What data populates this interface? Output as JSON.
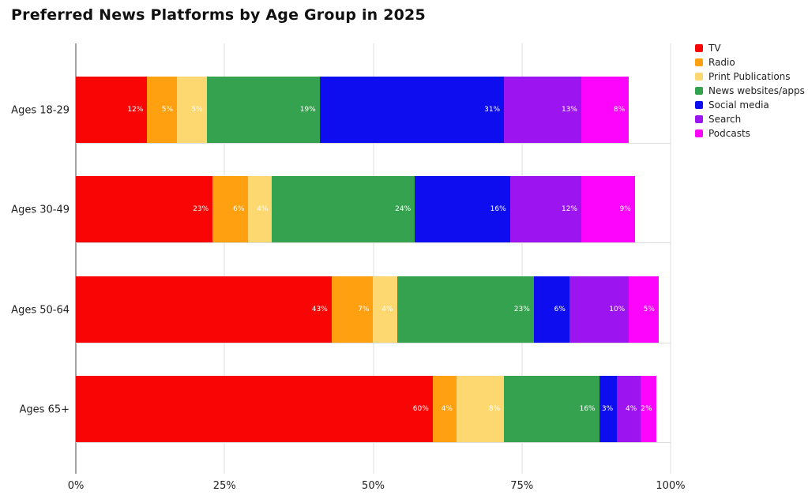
{
  "title": "Preferred News Platforms by Age Group in 2025",
  "chart_data": {
    "type": "bar",
    "orientation": "horizontal",
    "stacked": true,
    "title": "Preferred News Platforms by Age Group in 2025",
    "categories": [
      "Ages 18-29",
      "Ages 30-49",
      "Ages 50-64",
      "Ages 65+"
    ],
    "series": [
      {
        "name": "TV",
        "color": "#fa0505",
        "values": [
          12,
          23,
          43,
          60
        ]
      },
      {
        "name": "Radio",
        "color": "#ffa011",
        "values": [
          5,
          6,
          7,
          4
        ]
      },
      {
        "name": "Print Publications",
        "color": "#fdd870",
        "values": [
          5,
          4,
          4,
          8
        ]
      },
      {
        "name": "News websites/apps",
        "color": "#34a24e",
        "values": [
          19,
          24,
          23,
          16
        ]
      },
      {
        "name": "Social media",
        "color": "#0d0df0",
        "values": [
          31,
          16,
          6,
          3
        ]
      },
      {
        "name": "Search",
        "color": "#9c15f0",
        "values": [
          13,
          12,
          10,
          4
        ]
      },
      {
        "name": "Podcasts",
        "color": "#fd05fd",
        "values": [
          8,
          9,
          5,
          2
        ]
      }
    ],
    "value_label_suffix": "%",
    "x_axis": {
      "tick_labels": [
        "0%",
        "25%",
        "50%",
        "75%",
        "100%"
      ],
      "tick_values": [
        0,
        25,
        50,
        75,
        100
      ],
      "range": [
        0,
        100
      ]
    },
    "grid": true,
    "legend_position": "top-right"
  },
  "colors": {
    "axis_line": "#444444",
    "gridline": "#dddddd",
    "segment_label": "#ffffff",
    "text": "#222222"
  }
}
